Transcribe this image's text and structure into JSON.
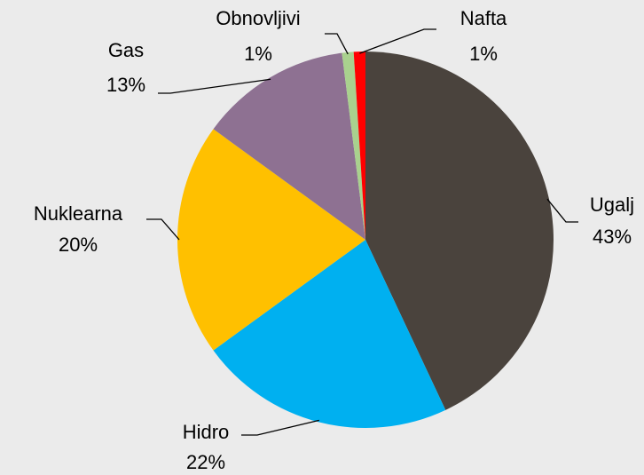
{
  "chart_data": {
    "type": "pie",
    "categories": [
      "Ugalj",
      "Hidro",
      "Nuklearna",
      "Gas",
      "Obnovljivi",
      "Nafta"
    ],
    "values": [
      43,
      22,
      20,
      13,
      1,
      1
    ],
    "value_labels": [
      "43%",
      "22%",
      "20%",
      "13%",
      "1%",
      "1%"
    ],
    "colors": [
      "#4a433d",
      "#00b0f0",
      "#ffc000",
      "#8e7192",
      "#a9d18e",
      "#ff0000"
    ]
  }
}
